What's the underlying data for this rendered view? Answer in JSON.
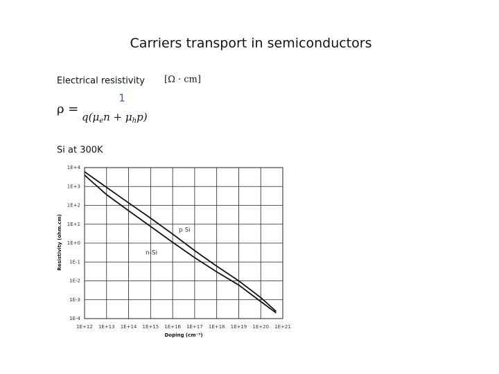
{
  "slide": {
    "title": "Carriers transport in semiconductors",
    "heading": "Electrical resistivity",
    "units": "[Ω · cm]",
    "formula": {
      "lhs": "ρ =",
      "numerator": "1",
      "denominator": [
        "q(μ",
        "e",
        "n + μ",
        "h",
        "p)"
      ]
    },
    "caption": "Si at 300K"
  },
  "chart_data": {
    "type": "line",
    "xlabel": "Doping (cm⁻³)",
    "ylabel": "Resistivity (ohm.cm)",
    "xscale": "log",
    "yscale": "log",
    "grid": true,
    "x": [
      1000000000000.0,
      10000000000000.0,
      100000000000000.0,
      1000000000000000.0,
      1e+16,
      1e+17,
      1e+18,
      1e+19,
      1e+20,
      5e+20
    ],
    "series": [
      {
        "name": "p Si",
        "color": "#111111",
        "values": [
          6000,
          900,
          135,
          21,
          3,
          0.4,
          0.06,
          0.01,
          0.0013,
          0.00024
        ]
      },
      {
        "name": "n-Si",
        "color": "#111111",
        "values": [
          4000,
          370,
          52,
          7.6,
          1.1,
          0.17,
          0.03,
          0.006,
          0.0008,
          0.0002
        ]
      }
    ],
    "xlim": [
      1000000000000.0,
      1e+21
    ],
    "ylim": [
      0.0001,
      10000
    ],
    "xticks": [
      {
        "value": 1000000000000.0,
        "label": "1E+12"
      },
      {
        "value": 10000000000000.0,
        "label": "1E+13"
      },
      {
        "value": 100000000000000.0,
        "label": "1E+14"
      },
      {
        "value": 1000000000000000.0,
        "label": "1E+15"
      },
      {
        "value": 1e+16,
        "label": "1E+16"
      },
      {
        "value": 1e+17,
        "label": "1E+17"
      },
      {
        "value": 1e+18,
        "label": "1E+18"
      },
      {
        "value": 1e+19,
        "label": "1E+19"
      },
      {
        "value": 1e+20,
        "label": "1E+20"
      },
      {
        "value": 1e+21,
        "label": "1E+21"
      }
    ],
    "yticks": [
      {
        "value": 10000,
        "label": "1E+4"
      },
      {
        "value": 1000,
        "label": "1E+3"
      },
      {
        "value": 100,
        "label": "1E+2"
      },
      {
        "value": 10,
        "label": "1E+1"
      },
      {
        "value": 1,
        "label": "1E+0"
      },
      {
        "value": 0.1,
        "label": "1E-1"
      },
      {
        "value": 0.01,
        "label": "1E-2"
      },
      {
        "value": 0.001,
        "label": "1E-3"
      },
      {
        "value": 0.0001,
        "label": "1E-4"
      }
    ]
  }
}
